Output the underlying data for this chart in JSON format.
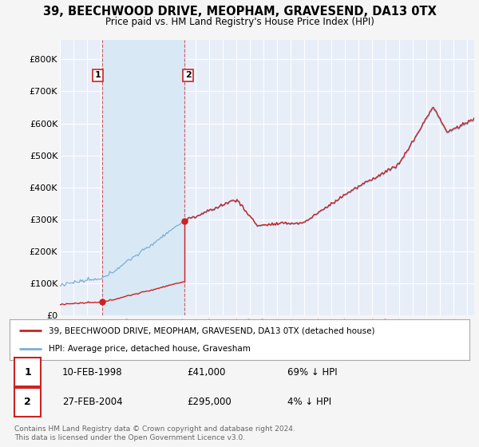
{
  "title": "39, BEECHWOOD DRIVE, MEOPHAM, GRAVESEND, DA13 0TX",
  "subtitle": "Price paid vs. HM Land Registry's House Price Index (HPI)",
  "xlim": [
    1995.0,
    2025.5
  ],
  "ylim": [
    0,
    860000
  ],
  "yticks": [
    0,
    100000,
    200000,
    300000,
    400000,
    500000,
    600000,
    700000,
    800000
  ],
  "ytick_labels": [
    "£0",
    "£100K",
    "£200K",
    "£300K",
    "£400K",
    "£500K",
    "£600K",
    "£700K",
    "£800K"
  ],
  "sale1_date": 1998.11,
  "sale1_price": 41000,
  "sale2_date": 2004.15,
  "sale2_price": 295000,
  "hpi_line_color": "#7ab0d4",
  "price_line_color": "#cc2222",
  "shade_color": "#d8e8f5",
  "background_color": "#f5f5f5",
  "plot_bg_color": "#e8eef8",
  "grid_color": "#ffffff",
  "legend_label1": "39, BEECHWOOD DRIVE, MEOPHAM, GRAVESEND, DA13 0TX (detached house)",
  "legend_label2": "HPI: Average price, detached house, Gravesham",
  "annotation1_date": "10-FEB-1998",
  "annotation1_price": "£41,000",
  "annotation1_hpi": "69% ↓ HPI",
  "annotation2_date": "27-FEB-2004",
  "annotation2_price": "£295,000",
  "annotation2_hpi": "4% ↓ HPI",
  "footer": "Contains HM Land Registry data © Crown copyright and database right 2024.\nThis data is licensed under the Open Government Licence v3.0."
}
